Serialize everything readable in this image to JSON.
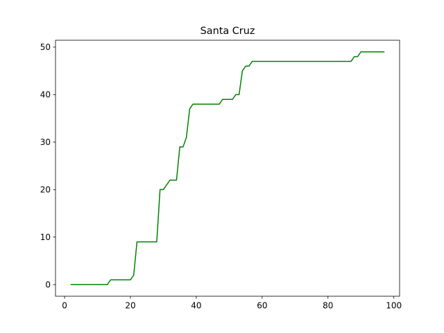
{
  "chart_data": {
    "type": "line",
    "title": "Santa Cruz",
    "xlabel": "",
    "ylabel": "",
    "xlim": [
      -2.75,
      101.75
    ],
    "ylim": [
      -2.45,
      51.45
    ],
    "xticks": [
      0,
      20,
      40,
      60,
      80,
      100
    ],
    "yticks": [
      0,
      10,
      20,
      30,
      40,
      50
    ],
    "grid": false,
    "line_color": "#008000",
    "series": [
      {
        "points": [
          [
            2,
            0
          ],
          [
            13,
            0
          ],
          [
            14,
            1
          ],
          [
            20,
            1
          ],
          [
            21,
            2
          ],
          [
            22,
            9
          ],
          [
            28,
            9
          ],
          [
            29,
            20
          ],
          [
            30,
            20
          ],
          [
            32,
            22
          ],
          [
            34,
            22
          ],
          [
            35,
            29
          ],
          [
            36,
            29
          ],
          [
            37,
            31
          ],
          [
            38,
            37
          ],
          [
            39,
            38
          ],
          [
            47,
            38
          ],
          [
            48,
            39
          ],
          [
            51,
            39
          ],
          [
            52,
            40
          ],
          [
            53,
            40
          ],
          [
            54,
            45
          ],
          [
            55,
            46
          ],
          [
            56,
            46
          ],
          [
            57,
            47
          ],
          [
            87,
            47
          ],
          [
            88,
            48
          ],
          [
            89,
            48
          ],
          [
            90,
            49
          ],
          [
            97,
            49
          ]
        ]
      }
    ]
  }
}
